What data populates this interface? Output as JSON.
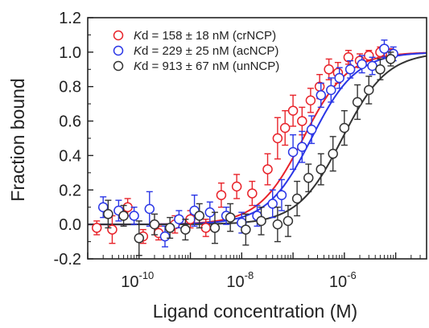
{
  "chart_data": {
    "type": "scatter",
    "xlabel": "Ligand concentration (M)",
    "ylabel": "Fraction bound",
    "xscale": "log",
    "xlim": [
      1e-11,
      4e-05
    ],
    "ylim": [
      -0.2,
      1.2
    ],
    "grid": false,
    "legend_position": "top-left",
    "x_tick_labels": [
      {
        "value": 1e-10,
        "base": "10",
        "exp": "-10"
      },
      {
        "value": 1e-08,
        "base": "10",
        "exp": "-8"
      },
      {
        "value": 1e-06,
        "base": "10",
        "exp": "-6"
      }
    ],
    "y_ticks": [
      -0.2,
      0.0,
      0.2,
      0.4,
      0.6,
      0.8,
      1.0,
      1.2
    ],
    "y_tick_labels": [
      "-0.2",
      "0.0",
      "0.2",
      "0.4",
      "0.6",
      "0.8",
      "1.0",
      "1.2"
    ],
    "series": [
      {
        "name": "crNCP",
        "legend_label": "d = 158 ± 18 nM (crNCP)",
        "legend_italic": "K",
        "color": "#e8232a",
        "kd": 1.58e-07,
        "x": [
          1.5e-11,
          3e-11,
          6e-11,
          1.2e-10,
          2.4e-10,
          5e-10,
          1e-09,
          2e-09,
          4e-09,
          8e-09,
          1.6e-08,
          3.2e-08,
          5e-08,
          7e-08,
          1e-07,
          1.5e-07,
          2.2e-07,
          3.3e-07,
          5e-07,
          7.5e-07,
          1.2e-06,
          2e-06,
          3e-06,
          5e-06,
          8e-06
        ],
        "y": [
          -0.02,
          -0.03,
          0.1,
          -0.07,
          -0.05,
          0.0,
          0.03,
          -0.02,
          0.17,
          0.22,
          0.18,
          0.32,
          0.5,
          0.56,
          0.66,
          0.6,
          0.72,
          0.8,
          0.9,
          0.88,
          0.97,
          0.95,
          0.98,
          1.0,
          0.99
        ],
        "err": [
          0.04,
          0.08,
          0.05,
          0.04,
          0.04,
          0.05,
          0.05,
          0.05,
          0.07,
          0.07,
          0.07,
          0.09,
          0.12,
          0.1,
          0.09,
          0.08,
          0.07,
          0.07,
          0.06,
          0.06,
          0.04,
          0.04,
          0.03,
          0.03,
          0.03
        ]
      },
      {
        "name": "acNCP",
        "legend_label": "d = 229 ± 25 nM (acNCP)",
        "legend_italic": "K",
        "color": "#2a36e6",
        "kd": 2.29e-07,
        "x": [
          2e-11,
          4e-11,
          8e-11,
          1.6e-10,
          3.2e-10,
          6e-10,
          1.2e-09,
          2.4e-09,
          5e-09,
          1e-08,
          2e-08,
          4e-08,
          6e-08,
          1e-07,
          1.5e-07,
          2.3e-07,
          3.5e-07,
          5.5e-07,
          8e-07,
          1.3e-06,
          2.2e-06,
          3.5e-06,
          6e-06,
          9e-06
        ],
        "y": [
          0.1,
          0.08,
          0.05,
          0.09,
          -0.07,
          0.03,
          0.08,
          0.07,
          0.05,
          0.01,
          0.05,
          0.12,
          0.17,
          0.42,
          0.45,
          0.55,
          0.75,
          0.78,
          0.85,
          0.9,
          0.93,
          0.92,
          1.02,
          0.99
        ],
        "err": [
          0.06,
          0.06,
          0.05,
          0.1,
          0.06,
          0.05,
          0.09,
          0.06,
          0.05,
          0.06,
          0.06,
          0.08,
          0.09,
          0.1,
          0.09,
          0.08,
          0.07,
          0.07,
          0.06,
          0.05,
          0.05,
          0.05,
          0.05,
          0.04
        ]
      },
      {
        "name": "unNCP",
        "legend_label": "d = 913 ± 67 nM (unNCP)",
        "legend_italic": "K",
        "color": "#333333",
        "kd": 9.13e-07,
        "x": [
          2.5e-11,
          5e-11,
          1e-10,
          2e-10,
          4e-10,
          8e-10,
          1.5e-09,
          3e-09,
          6e-09,
          1.2e-08,
          2.4e-08,
          5e-08,
          8e-08,
          1.2e-07,
          2e-07,
          3.5e-07,
          6e-07,
          1e-06,
          1.8e-06,
          3e-06,
          5e-06,
          8e-06
        ],
        "y": [
          0.06,
          0.05,
          -0.08,
          0.0,
          -0.02,
          -0.03,
          0.05,
          -0.02,
          0.04,
          -0.03,
          0.02,
          0.0,
          0.02,
          0.15,
          0.27,
          0.32,
          0.41,
          0.56,
          0.71,
          0.78,
          0.9,
          0.96
        ],
        "err": [
          0.08,
          0.06,
          0.1,
          0.06,
          0.06,
          0.06,
          0.07,
          0.09,
          0.08,
          0.09,
          0.08,
          0.1,
          0.09,
          0.1,
          0.08,
          0.09,
          0.1,
          0.1,
          0.1,
          0.08,
          0.06,
          0.04
        ]
      }
    ]
  }
}
